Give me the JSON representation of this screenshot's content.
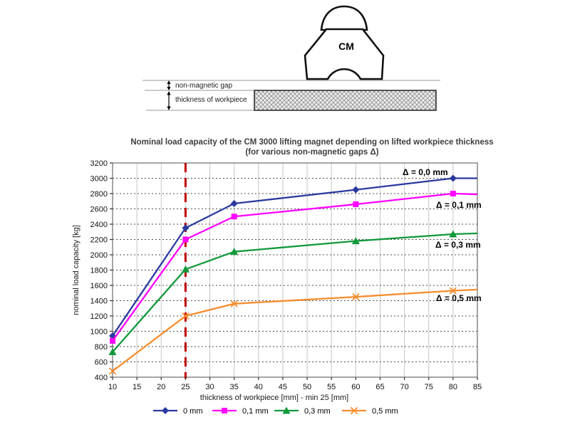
{
  "diagram": {
    "magnet_label": "CM",
    "gap_label": "non-magnetic gap",
    "workpiece_label": "thickness of workpiece"
  },
  "chart_data": {
    "type": "line",
    "title_line1": "Nominal load capacity of the CM 3000 lifting magnet depending on lifted workpiece thickness",
    "title_line2": "(for various non-magnetic gaps Δ)",
    "xlabel": "thickness of workpiece [mm] - min 25 [mm]",
    "ylabel": "nominal load capacity [kg]",
    "xlim": [
      10,
      85
    ],
    "ylim": [
      400,
      3200
    ],
    "xticks": [
      10,
      15,
      20,
      25,
      30,
      35,
      40,
      45,
      50,
      55,
      60,
      65,
      70,
      75,
      80,
      85
    ],
    "yticks": [
      400,
      600,
      800,
      1000,
      1200,
      1400,
      1600,
      1800,
      2000,
      2200,
      2400,
      2600,
      2800,
      3000,
      3200
    ],
    "grid": true,
    "x": [
      10,
      25,
      35,
      60,
      80,
      85
    ],
    "marker_x": [
      10,
      25,
      35,
      60,
      80
    ],
    "reference_line": {
      "x": 25,
      "color": "#C00000",
      "style": "dashed"
    },
    "series": [
      {
        "name": "0 mm",
        "annotation": "Δ = 0,0 mm",
        "color": "#2B3A9F",
        "marker": "diamond",
        "values": [
          940,
          2350,
          2670,
          2850,
          3000,
          3000
        ]
      },
      {
        "name": "0,1 mm",
        "annotation": "Δ = 0,1 mm",
        "color": "#FF00FF",
        "marker": "square",
        "values": [
          875,
          2200,
          2500,
          2660,
          2800,
          2790
        ]
      },
      {
        "name": "0,3 mm",
        "annotation": "Δ = 0,3 mm",
        "color": "#12993B",
        "marker": "triangle",
        "values": [
          730,
          1810,
          2040,
          2180,
          2270,
          2280
        ]
      },
      {
        "name": "0,5 mm",
        "annotation": "Δ = 0,5 mm",
        "color": "#F68C2C",
        "marker": "x",
        "values": [
          480,
          1200,
          1360,
          1450,
          1530,
          1545
        ]
      }
    ],
    "legend_position": "bottom"
  }
}
